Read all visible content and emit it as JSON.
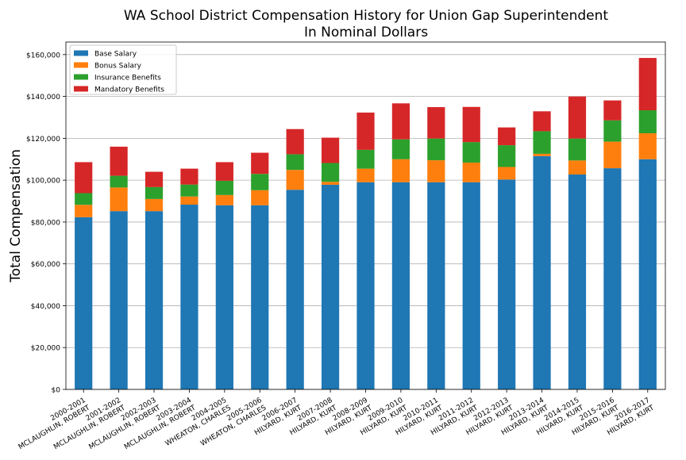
{
  "chart_data": {
    "type": "bar",
    "stacked": true,
    "title": "WA School District Compensation History for Union Gap Superintendent",
    "subtitle": "In Nominal Dollars",
    "xlabel": "",
    "ylabel": "Total Compensation",
    "ylim": [
      0,
      166000
    ],
    "yticks": [
      "$0",
      "$20,000",
      "$40,000",
      "$60,000",
      "$80,000",
      "$100,000",
      "$120,000",
      "$140,000",
      "$160,000"
    ],
    "grid": true,
    "legend_position": "top-left",
    "categories": [
      [
        "2000-2001",
        "MCLAUGHLIN, ROBERT"
      ],
      [
        "2001-2002",
        "MCLAUGHLIN, ROBERT"
      ],
      [
        "2002-2003",
        "MCLAUGHLIN, ROBERT"
      ],
      [
        "2003-2004",
        "MCLAUGHLIN, ROBERT"
      ],
      [
        "2004-2005",
        "WHEATON, CHARLES"
      ],
      [
        "2005-2006",
        "WHEATON, CHARLES"
      ],
      [
        "2006-2007",
        "HILYARD, KURT"
      ],
      [
        "2007-2008",
        "HILYARD, KURT"
      ],
      [
        "2008-2009",
        "HILYARD, KURT"
      ],
      [
        "2009-2010",
        "HILYARD, KURT"
      ],
      [
        "2010-2011",
        "HILYARD, KURT"
      ],
      [
        "2011-2012",
        "HILYARD, KURT"
      ],
      [
        "2012-2013",
        "HILYARD, KURT"
      ],
      [
        "2013-2014",
        "HILYARD, KURT"
      ],
      [
        "2014-2015",
        "HILYARD, KURT"
      ],
      [
        "2015-2016",
        "HILYARD, KURT"
      ],
      [
        "2016-2017",
        "HILYARD, KURT"
      ]
    ],
    "series": [
      {
        "name": "Base Salary",
        "color": "#1f77b4",
        "values": [
          82300,
          85200,
          85200,
          88300,
          88000,
          88000,
          95400,
          97800,
          99000,
          99000,
          99000,
          99000,
          100300,
          111500,
          102700,
          105700,
          110000
        ]
      },
      {
        "name": "Bonus Salary",
        "color": "#ff7f0e",
        "values": [
          5900,
          11300,
          5800,
          3900,
          4900,
          7200,
          9500,
          1400,
          6500,
          11000,
          10500,
          9400,
          6000,
          1100,
          6700,
          12700,
          12400
        ]
      },
      {
        "name": "Insurance Benefits",
        "color": "#2ca02c",
        "values": [
          5600,
          5600,
          5700,
          5700,
          6800,
          7800,
          7500,
          9000,
          9000,
          9500,
          10400,
          9800,
          10400,
          10800,
          10500,
          10200,
          11000
        ]
      },
      {
        "name": "Mandatory Benefits",
        "color": "#d62728",
        "values": [
          14800,
          13900,
          7300,
          7600,
          8900,
          10100,
          12000,
          12100,
          17800,
          17200,
          15000,
          16800,
          8500,
          9500,
          20100,
          9500,
          25000
        ]
      }
    ]
  }
}
